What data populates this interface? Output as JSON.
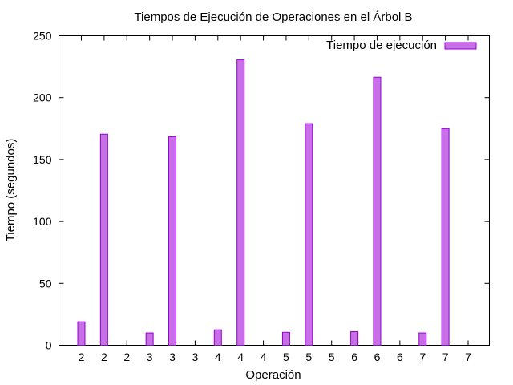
{
  "chart_data": {
    "type": "bar",
    "title": "Tiempos de Ejecución de Operaciones en el Árbol B",
    "xlabel": "Operación",
    "ylabel": "Tiempo (segundos)",
    "ylim": [
      0,
      250
    ],
    "yticks": [
      0,
      50,
      100,
      150,
      200,
      250
    ],
    "categories": [
      "2",
      "2",
      "2",
      "3",
      "3",
      "3",
      "4",
      "4",
      "4",
      "5",
      "5",
      "5",
      "6",
      "6",
      "6",
      "7",
      "7",
      "7"
    ],
    "series": [
      {
        "name": "Tiempo de ejecución",
        "values": [
          19,
          170.5,
          0,
          10,
          168.5,
          0,
          12.5,
          230.5,
          0,
          10.5,
          179,
          0,
          11,
          216.5,
          0,
          10,
          175,
          0
        ],
        "color": "#c86ee6",
        "stroke": "#9400d3"
      }
    ],
    "legend": "top-right",
    "grid": false
  }
}
